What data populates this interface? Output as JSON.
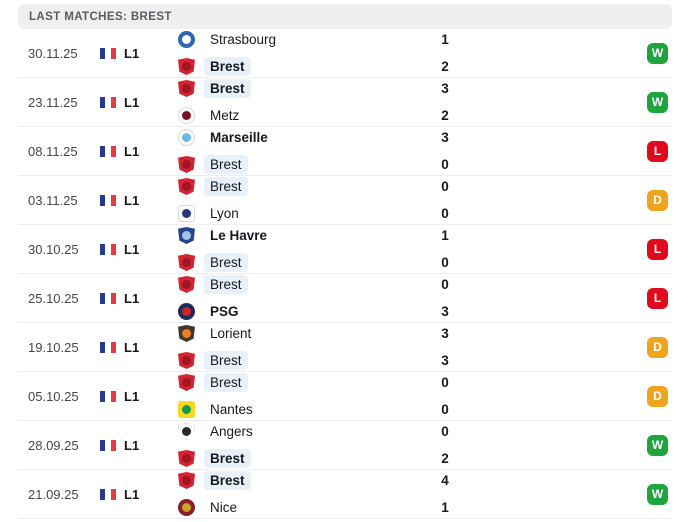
{
  "header": {
    "title": "LAST MATCHES: BREST"
  },
  "colors": {
    "win": "#1fa53d",
    "loss": "#e10a1c",
    "draw": "#f0a31c",
    "brest_highlight": "#e8f0fa",
    "header_bg": "#efefef",
    "flag_blue": "#283a8f",
    "flag_red": "#e73b44"
  },
  "icons": {
    "flag": "france-flag-icon",
    "result_badge": "result-badge"
  },
  "matches": [
    {
      "date": "30.11.25",
      "league": "L1",
      "result": "W",
      "teams": [
        {
          "name": "Strasbourg",
          "score": "1",
          "winner": false,
          "is_brest": false,
          "logo": {
            "shape": "circle",
            "primary": "#2e66b2",
            "secondary": "#ffffff",
            "light": false
          }
        },
        {
          "name": "Brest",
          "score": "2",
          "winner": true,
          "is_brest": true,
          "logo": {
            "shape": "shield",
            "primary": "#d42332",
            "secondary": "#a11622",
            "light": false
          }
        }
      ]
    },
    {
      "date": "23.11.25",
      "league": "L1",
      "result": "W",
      "teams": [
        {
          "name": "Brest",
          "score": "3",
          "winner": true,
          "is_brest": true,
          "logo": {
            "shape": "shield",
            "primary": "#d42332",
            "secondary": "#a11622",
            "light": false
          }
        },
        {
          "name": "Metz",
          "score": "2",
          "winner": false,
          "is_brest": false,
          "logo": {
            "shape": "circle",
            "primary": "#ffffff",
            "secondary": "#7a1222",
            "light": true
          }
        }
      ]
    },
    {
      "date": "08.11.25",
      "league": "L1",
      "result": "L",
      "teams": [
        {
          "name": "Marseille",
          "score": "3",
          "winner": true,
          "is_brest": false,
          "logo": {
            "shape": "circle",
            "primary": "#ffffff",
            "secondary": "#6fb9e4",
            "light": true
          }
        },
        {
          "name": "Brest",
          "score": "0",
          "winner": false,
          "is_brest": true,
          "logo": {
            "shape": "shield",
            "primary": "#d42332",
            "secondary": "#a11622",
            "light": false
          }
        }
      ]
    },
    {
      "date": "03.11.25",
      "league": "L1",
      "result": "D",
      "teams": [
        {
          "name": "Brest",
          "score": "0",
          "winner": false,
          "is_brest": true,
          "logo": {
            "shape": "shield",
            "primary": "#d42332",
            "secondary": "#a11622",
            "light": false
          }
        },
        {
          "name": "Lyon",
          "score": "0",
          "winner": false,
          "is_brest": false,
          "logo": {
            "shape": "square",
            "primary": "#ffffff",
            "secondary": "#28367f",
            "light": true
          }
        }
      ]
    },
    {
      "date": "30.10.25",
      "league": "L1",
      "result": "L",
      "teams": [
        {
          "name": "Le Havre",
          "score": "1",
          "winner": true,
          "is_brest": false,
          "logo": {
            "shape": "shield",
            "primary": "#27448c",
            "secondary": "#9fc5e8",
            "light": false
          }
        },
        {
          "name": "Brest",
          "score": "0",
          "winner": false,
          "is_brest": true,
          "logo": {
            "shape": "shield",
            "primary": "#d42332",
            "secondary": "#a11622",
            "light": false
          }
        }
      ]
    },
    {
      "date": "25.10.25",
      "league": "L1",
      "result": "L",
      "teams": [
        {
          "name": "Brest",
          "score": "0",
          "winner": false,
          "is_brest": true,
          "logo": {
            "shape": "shield",
            "primary": "#d42332",
            "secondary": "#a11622",
            "light": false
          }
        },
        {
          "name": "PSG",
          "score": "3",
          "winner": true,
          "is_brest": false,
          "logo": {
            "shape": "circle",
            "primary": "#1b2c57",
            "secondary": "#d2232e",
            "light": false
          }
        }
      ]
    },
    {
      "date": "19.10.25",
      "league": "L1",
      "result": "D",
      "teams": [
        {
          "name": "Lorient",
          "score": "3",
          "winner": false,
          "is_brest": false,
          "logo": {
            "shape": "shield",
            "primary": "#42372e",
            "secondary": "#ef7d1f",
            "light": false
          }
        },
        {
          "name": "Brest",
          "score": "3",
          "winner": false,
          "is_brest": true,
          "logo": {
            "shape": "shield",
            "primary": "#d42332",
            "secondary": "#a11622",
            "light": false
          }
        }
      ]
    },
    {
      "date": "05.10.25",
      "league": "L1",
      "result": "D",
      "teams": [
        {
          "name": "Brest",
          "score": "0",
          "winner": false,
          "is_brest": true,
          "logo": {
            "shape": "shield",
            "primary": "#d42332",
            "secondary": "#a11622",
            "light": false
          }
        },
        {
          "name": "Nantes",
          "score": "0",
          "winner": false,
          "is_brest": false,
          "logo": {
            "shape": "square",
            "primary": "#f8d91f",
            "secondary": "#159a49",
            "light": false
          }
        }
      ]
    },
    {
      "date": "28.09.25",
      "league": "L1",
      "result": "W",
      "teams": [
        {
          "name": "Angers",
          "score": "0",
          "winner": false,
          "is_brest": false,
          "logo": {
            "shape": "shield",
            "primary": "#ffffff",
            "secondary": "#2b2b2b",
            "light": true
          }
        },
        {
          "name": "Brest",
          "score": "2",
          "winner": true,
          "is_brest": true,
          "logo": {
            "shape": "shield",
            "primary": "#d42332",
            "secondary": "#a11622",
            "light": false
          }
        }
      ]
    },
    {
      "date": "21.09.25",
      "league": "L1",
      "result": "W",
      "teams": [
        {
          "name": "Brest",
          "score": "4",
          "winner": true,
          "is_brest": true,
          "logo": {
            "shape": "shield",
            "primary": "#d42332",
            "secondary": "#a11622",
            "light": false
          }
        },
        {
          "name": "Nice",
          "score": "1",
          "winner": false,
          "is_brest": false,
          "logo": {
            "shape": "circle",
            "primary": "#8a1e28",
            "secondary": "#c9a227",
            "light": false
          }
        }
      ]
    }
  ]
}
